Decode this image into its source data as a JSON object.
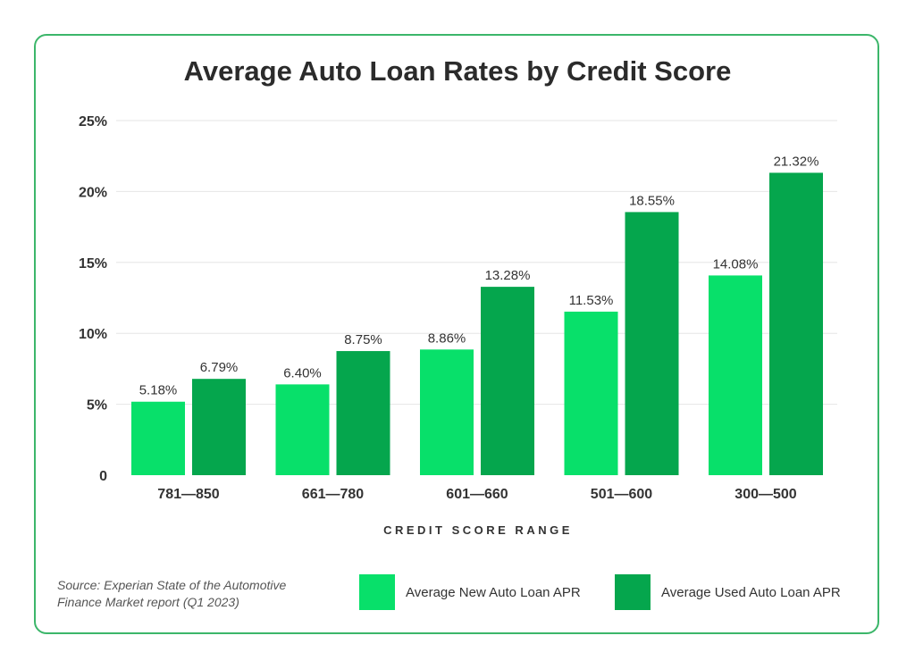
{
  "chart_data": {
    "type": "bar",
    "title": "Average Auto Loan Rates by Credit Score",
    "xlabel": "CREDIT SCORE RANGE",
    "ylabel": "",
    "ylim": [
      0,
      25
    ],
    "yticks": [
      "0",
      "5%",
      "10%",
      "15%",
      "20%",
      "25%"
    ],
    "ytick_values": [
      0,
      5,
      10,
      15,
      20,
      25
    ],
    "grid": true,
    "legend_placement": "bottom-right",
    "categories": [
      "781—850",
      "661—780",
      "601—660",
      "501—600",
      "300—500"
    ],
    "series": [
      {
        "name": "Average New Auto Loan APR",
        "color": "#08e06a",
        "values": [
          5.18,
          6.4,
          8.86,
          11.53,
          14.08
        ],
        "labels": [
          "5.18%",
          "6.40%",
          "8.86%",
          "11.53%",
          "14.08%"
        ]
      },
      {
        "name": "Average Used Auto Loan APR",
        "color": "#05a64d",
        "values": [
          6.79,
          8.75,
          13.28,
          18.55,
          21.32
        ],
        "labels": [
          "6.79%",
          "8.75%",
          "13.28%",
          "18.55%",
          "21.32%"
        ]
      }
    ]
  },
  "source": "Source: Experian State of the Automotive Finance Market report (Q1 2023)",
  "frame_color": "#3cb66a"
}
